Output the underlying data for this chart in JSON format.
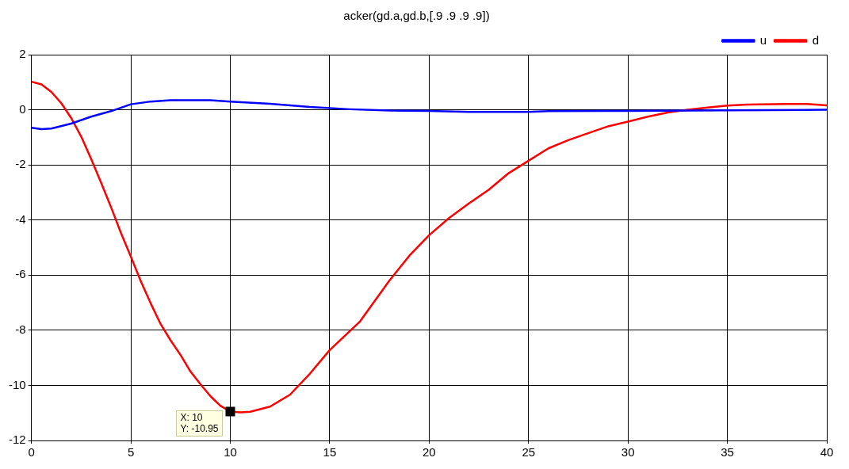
{
  "chart_data": {
    "type": "line",
    "title": "acker(gd.a,gd.b,[.9 .9 .9 .9])",
    "xlim": [
      0,
      40
    ],
    "xticks": [
      0,
      5,
      10,
      15,
      20,
      25,
      30,
      35,
      40
    ],
    "ylim": [
      -12,
      2
    ],
    "yticks": [
      -12,
      -10,
      -8,
      -6,
      -4,
      -2,
      0,
      2
    ],
    "grid": true,
    "legend": "top right",
    "marker": "none",
    "line_style": "solid",
    "series": [
      {
        "name": "u",
        "color": "#0000ff",
        "x": [
          0,
          0.5,
          1,
          2,
          3,
          4,
          5,
          6,
          7,
          9,
          10,
          12,
          14,
          16,
          18,
          20,
          22,
          25,
          26,
          30,
          35,
          40
        ],
        "values": [
          -0.65,
          -0.7,
          -0.68,
          -0.5,
          -0.25,
          -0.05,
          0.2,
          0.3,
          0.35,
          0.35,
          0.3,
          0.22,
          0.1,
          0.02,
          -0.03,
          -0.04,
          -0.08,
          -0.08,
          -0.05,
          -0.04,
          -0.02,
          0
        ]
      },
      {
        "name": "d",
        "color": "#ff0000",
        "x": [
          0,
          0.5,
          1,
          1.5,
          2,
          2.5,
          3,
          3.5,
          4,
          4.5,
          5,
          5.5,
          6,
          6.5,
          7,
          7.5,
          8,
          8.5,
          9,
          9.5,
          10,
          10.5,
          11,
          12,
          13,
          14,
          15,
          16.5,
          18,
          19,
          20,
          21,
          22,
          23,
          24,
          25,
          26,
          27,
          28,
          29,
          30,
          31,
          32,
          33,
          34,
          35,
          36,
          38,
          39,
          40
        ],
        "values": [
          1.02,
          0.92,
          0.65,
          0.24,
          -0.3,
          -0.97,
          -1.78,
          -2.64,
          -3.53,
          -4.47,
          -5.33,
          -6.22,
          -7.03,
          -7.78,
          -8.37,
          -8.9,
          -9.5,
          -9.96,
          -10.39,
          -10.74,
          -10.95,
          -10.98,
          -10.96,
          -10.77,
          -10.34,
          -9.58,
          -8.72,
          -7.7,
          -6.2,
          -5.3,
          -4.55,
          -3.93,
          -3.4,
          -2.9,
          -2.3,
          -1.85,
          -1.4,
          -1.1,
          -0.85,
          -0.6,
          -0.43,
          -0.25,
          -0.1,
          0,
          0.08,
          0.15,
          0.19,
          0.21,
          0.21,
          0.16
        ]
      }
    ],
    "annotations": [
      {
        "text": "X: 10\nY: -10.95",
        "x": 10,
        "y": -10.95
      }
    ]
  }
}
